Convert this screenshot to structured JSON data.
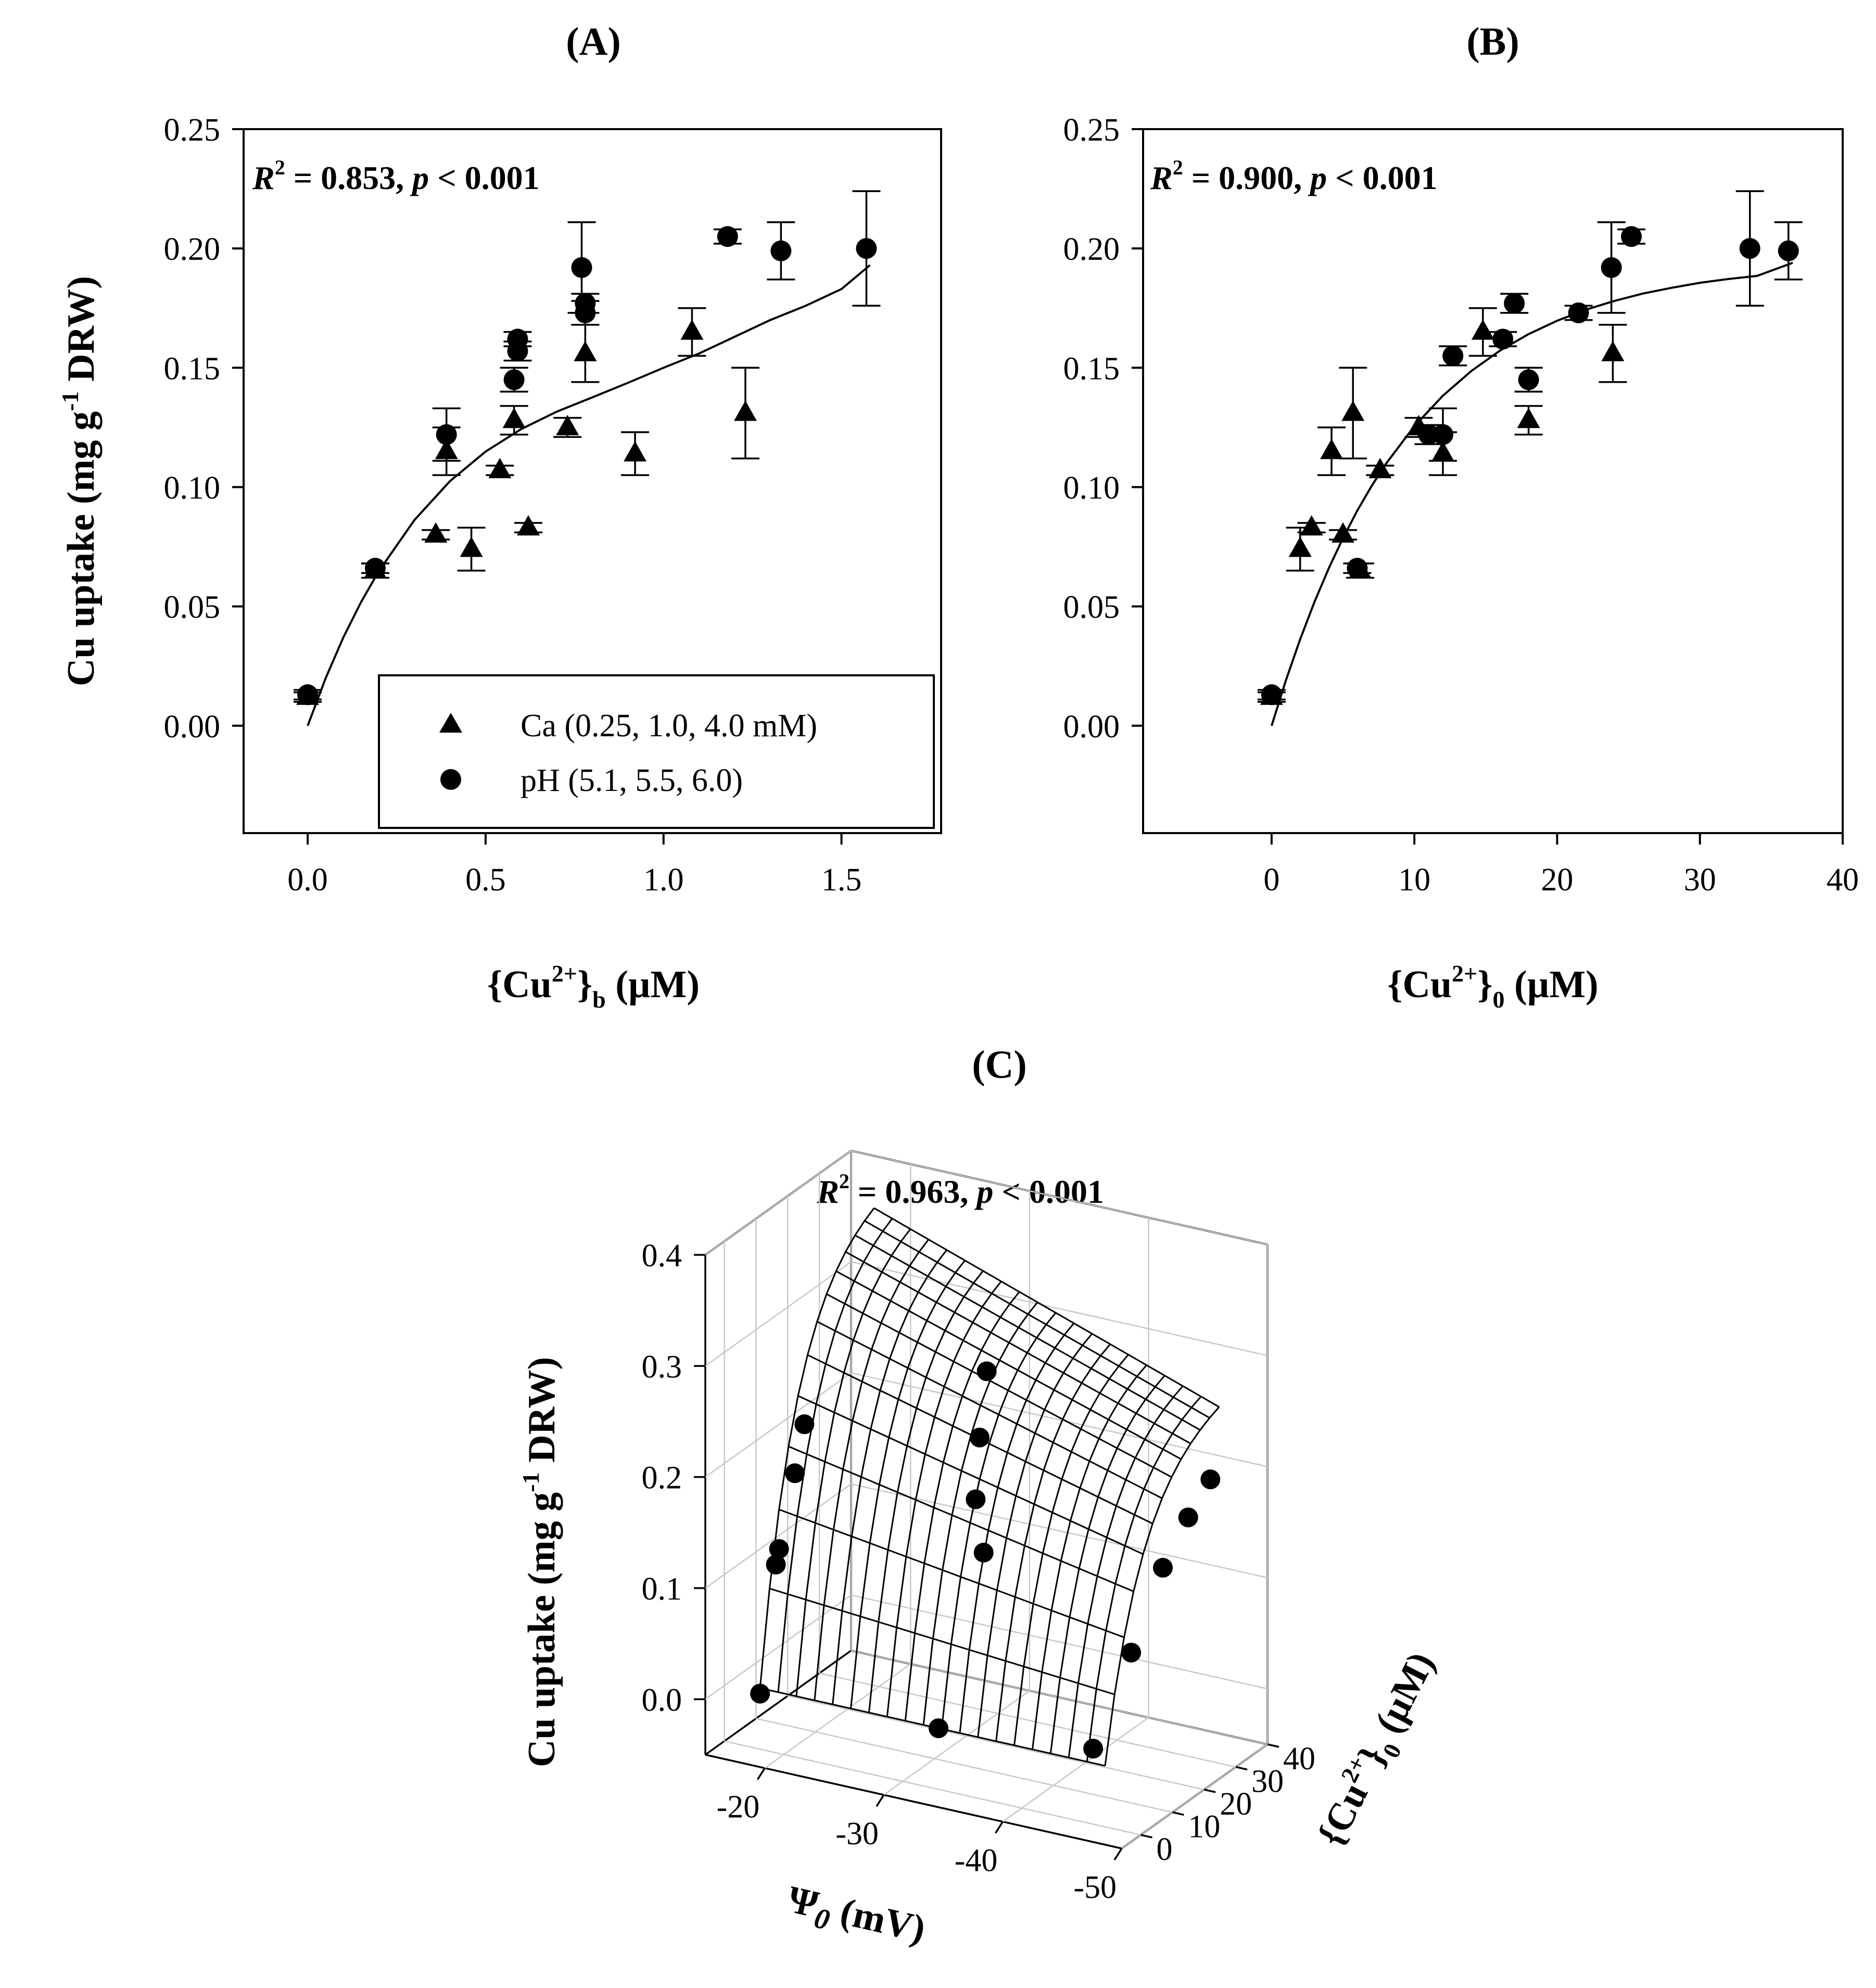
{
  "chart_data": [
    {
      "id": "A",
      "panel_label": "(A)",
      "type": "scatter",
      "stat_r2": "R",
      "stat_text": " = 0.853, ",
      "stat_p": "p",
      "stat_tail": " < 0.001",
      "xlabel_pre": "{Cu",
      "xlabel_sup": "2+",
      "xlabel_mid": "}",
      "xlabel_sub": "b",
      "xlabel_post": " (µM)",
      "ylabel_pre": "Cu uptake (mg g",
      "ylabel_sup": "-1",
      "ylabel_post": " DRW)",
      "xlim": [
        -0.18,
        1.78
      ],
      "ylim": [
        -0.045,
        0.25
      ],
      "xticks": [
        "0.0",
        "0.5",
        "1.0",
        "1.5"
      ],
      "xtick_values": [
        0,
        0.5,
        1.0,
        1.5
      ],
      "yticks": [
        "0.00",
        "0.05",
        "0.10",
        "0.15",
        "0.20",
        "0.25"
      ],
      "ytick_values": [
        0,
        0.05,
        0.1,
        0.15,
        0.2,
        0.25
      ],
      "legend": {
        "position": "bottom-right",
        "entries": [
          {
            "marker": "triangle",
            "label": "Ca (0.25, 1.0, 4.0 mM)"
          },
          {
            "marker": "circle",
            "label": "pH (5.1, 5.5, 6.0)"
          }
        ]
      },
      "series": [
        {
          "name": "Ca (0.25, 1.0, 4.0 mM)",
          "marker": "triangle",
          "points": [
            {
              "x": 0.0,
              "y": 0.012,
              "err": 0.002
            },
            {
              "x": 0.19,
              "y": 0.065,
              "err": 0.003
            },
            {
              "x": 0.36,
              "y": 0.08,
              "err": 0.002
            },
            {
              "x": 0.39,
              "y": 0.115,
              "err": 0.01
            },
            {
              "x": 0.46,
              "y": 0.074,
              "err": 0.009
            },
            {
              "x": 0.54,
              "y": 0.107,
              "err": 0.002
            },
            {
              "x": 0.58,
              "y": 0.128,
              "err": 0.006
            },
            {
              "x": 0.62,
              "y": 0.083,
              "err": 0.002
            },
            {
              "x": 0.73,
              "y": 0.125,
              "err": 0.004
            },
            {
              "x": 0.78,
              "y": 0.156,
              "err": 0.012
            },
            {
              "x": 0.92,
              "y": 0.114,
              "err": 0.009
            },
            {
              "x": 1.08,
              "y": 0.165,
              "err": 0.01
            },
            {
              "x": 1.23,
              "y": 0.131,
              "err": 0.019
            }
          ]
        },
        {
          "name": "pH (5.1, 5.5, 6.0)",
          "marker": "circle",
          "points": [
            {
              "x": 0.0,
              "y": 0.013,
              "err": 0.002
            },
            {
              "x": 0.19,
              "y": 0.066,
              "err": 0.002
            },
            {
              "x": 0.39,
              "y": 0.122,
              "err": 0.011
            },
            {
              "x": 0.58,
              "y": 0.145,
              "err": 0.005
            },
            {
              "x": 0.59,
              "y": 0.157,
              "err": 0.004
            },
            {
              "x": 0.59,
              "y": 0.162,
              "err": 0.003
            },
            {
              "x": 0.77,
              "y": 0.192,
              "err": 0.019
            },
            {
              "x": 0.78,
              "y": 0.173,
              "err": 0.005
            },
            {
              "x": 0.78,
              "y": 0.177,
              "err": 0.004
            },
            {
              "x": 1.18,
              "y": 0.205,
              "err": 0.003
            },
            {
              "x": 1.33,
              "y": 0.199,
              "err": 0.012
            },
            {
              "x": 1.57,
              "y": 0.2,
              "err": 0.024
            }
          ]
        }
      ],
      "fit_curve": {
        "x": [
          0.0,
          0.05,
          0.1,
          0.15,
          0.2,
          0.3,
          0.4,
          0.5,
          0.6,
          0.7,
          0.8,
          0.9,
          1.0,
          1.1,
          1.2,
          1.3,
          1.4,
          1.5,
          1.58
        ],
        "y": [
          0.0,
          0.0197,
          0.0369,
          0.0518,
          0.0648,
          0.0862,
          0.1025,
          0.1149,
          0.1243,
          0.1316,
          0.1376,
          0.1437,
          0.15,
          0.156,
          0.163,
          0.17,
          0.176,
          0.183,
          0.193
        ]
      }
    },
    {
      "id": "B",
      "panel_label": "(B)",
      "type": "scatter",
      "stat_r2": "R",
      "stat_text": " = 0.900, ",
      "stat_p": "p",
      "stat_tail": " < 0.001",
      "xlabel_pre": "{Cu",
      "xlabel_sup": "2+",
      "xlabel_mid": "}",
      "xlabel_sub": "0",
      "xlabel_post": " (µM)",
      "xlim": [
        -9,
        40
      ],
      "ylim": [
        -0.045,
        0.25
      ],
      "xticks": [
        "0",
        "10",
        "20",
        "30",
        "40"
      ],
      "xtick_values": [
        0,
        10,
        20,
        30,
        40
      ],
      "yticks": [
        "0.00",
        "0.05",
        "0.10",
        "0.15",
        "0.20",
        "0.25"
      ],
      "ytick_values": [
        0,
        0.05,
        0.1,
        0.15,
        0.2,
        0.25
      ],
      "series": [
        {
          "name": "Ca (0.25, 1.0, 4.0 mM)",
          "marker": "triangle",
          "points": [
            {
              "x": 0.0,
              "y": 0.012,
              "err": 0.002
            },
            {
              "x": 2.0,
              "y": 0.074,
              "err": 0.009
            },
            {
              "x": 2.8,
              "y": 0.083,
              "err": 0.002
            },
            {
              "x": 4.2,
              "y": 0.115,
              "err": 0.01
            },
            {
              "x": 5.0,
              "y": 0.08,
              "err": 0.002
            },
            {
              "x": 5.7,
              "y": 0.131,
              "err": 0.019
            },
            {
              "x": 7.6,
              "y": 0.107,
              "err": 0.002
            },
            {
              "x": 6.2,
              "y": 0.065,
              "err": 0.003
            },
            {
              "x": 10.3,
              "y": 0.125,
              "err": 0.004
            },
            {
              "x": 12.0,
              "y": 0.114,
              "err": 0.009
            },
            {
              "x": 14.8,
              "y": 0.165,
              "err": 0.01
            },
            {
              "x": 18.0,
              "y": 0.128,
              "err": 0.006
            },
            {
              "x": 23.9,
              "y": 0.156,
              "err": 0.012
            }
          ]
        },
        {
          "name": "pH (5.1, 5.5, 6.0)",
          "marker": "circle",
          "points": [
            {
              "x": 0.0,
              "y": 0.013,
              "err": 0.002
            },
            {
              "x": 6.0,
              "y": 0.066,
              "err": 0.002
            },
            {
              "x": 11.0,
              "y": 0.122,
              "err": 0.004
            },
            {
              "x": 12.0,
              "y": 0.122,
              "err": 0.011
            },
            {
              "x": 12.7,
              "y": 0.155,
              "err": 0.004
            },
            {
              "x": 16.2,
              "y": 0.162,
              "err": 0.003
            },
            {
              "x": 17.0,
              "y": 0.177,
              "err": 0.004
            },
            {
              "x": 18.0,
              "y": 0.145,
              "err": 0.005
            },
            {
              "x": 21.5,
              "y": 0.173,
              "err": 0.003
            },
            {
              "x": 23.8,
              "y": 0.192,
              "err": 0.019
            },
            {
              "x": 25.2,
              "y": 0.205,
              "err": 0.003
            },
            {
              "x": 33.5,
              "y": 0.2,
              "err": 0.024
            },
            {
              "x": 36.2,
              "y": 0.199,
              "err": 0.012
            }
          ]
        }
      ],
      "fit_curve": {
        "x": [
          0.0,
          1,
          2,
          3,
          4,
          5,
          6,
          7,
          8,
          10,
          12,
          14,
          16,
          18,
          20,
          22,
          24,
          26,
          28,
          30,
          32,
          34,
          36.5
        ],
        "y": [
          0.0,
          0.019,
          0.0362,
          0.0518,
          0.0659,
          0.0786,
          0.0901,
          0.1004,
          0.1097,
          0.1255,
          0.1383,
          0.1487,
          0.1572,
          0.1641,
          0.1697,
          0.1743,
          0.178,
          0.1811,
          0.1835,
          0.1856,
          0.1872,
          0.1885,
          0.194
        ]
      }
    },
    {
      "id": "C",
      "panel_label": "(C)",
      "type": "surface3d",
      "stat_r2": "R",
      "stat_text": " = 0.963, ",
      "stat_p": "p",
      "stat_tail": " < 0.001",
      "zlabel_pre": "Cu uptake (mg g",
      "zlabel_sup": "-1",
      "zlabel_post": " DRW)",
      "xlabel_sym": "Ψ",
      "xlabel_sub": "0",
      "xlabel_post": " (mV)",
      "ylabel_pre": "{Cu",
      "ylabel_sup": "2+",
      "ylabel_mid": "}",
      "ylabel_sub": "0",
      "ylabel_post": " (µM)",
      "xlim": [
        -15,
        -50
      ],
      "ylim": [
        -6,
        40
      ],
      "zlim": [
        -0.05,
        0.4
      ],
      "xticks": [
        "-20",
        "-30",
        "-40",
        "-50"
      ],
      "xtick_values": [
        -20,
        -30,
        -40,
        -50
      ],
      "yticks": [
        "0",
        "10",
        "20",
        "30",
        "40"
      ],
      "ytick_values": [
        0,
        10,
        20,
        30,
        40
      ],
      "zticks": [
        "0.0",
        "0.1",
        "0.2",
        "0.3",
        "0.4"
      ],
      "ztick_values": [
        0.0,
        0.1,
        0.2,
        0.3,
        0.4
      ],
      "surface": {
        "x_range": [
          -18,
          -47
        ],
        "y_range": [
          0,
          36
        ],
        "nx": 19,
        "ny": 12
      },
      "points": [
        {
          "psi": -18,
          "cu": 0,
          "z": 0.0
        },
        {
          "psi": -18,
          "cu": 5,
          "z": 0.106
        },
        {
          "psi": -18,
          "cu": 6,
          "z": 0.118
        },
        {
          "psi": -18,
          "cu": 11,
          "z": 0.176
        },
        {
          "psi": -18,
          "cu": 14,
          "z": 0.214
        },
        {
          "psi": -33,
          "cu": 0,
          "z": 0.005
        },
        {
          "psi": -32,
          "cu": 18,
          "z": 0.124
        },
        {
          "psi": -30,
          "cu": 23,
          "z": 0.157
        },
        {
          "psi": -29,
          "cu": 28,
          "z": 0.2
        },
        {
          "psi": -28,
          "cu": 34,
          "z": 0.245
        },
        {
          "psi": -46,
          "cu": 0,
          "z": 0.018
        },
        {
          "psi": -46,
          "cu": 12,
          "z": 0.08
        },
        {
          "psi": -46,
          "cu": 22,
          "z": 0.136
        },
        {
          "psi": -46,
          "cu": 30,
          "z": 0.165
        },
        {
          "psi": -46,
          "cu": 37,
          "z": 0.185
        }
      ]
    }
  ]
}
